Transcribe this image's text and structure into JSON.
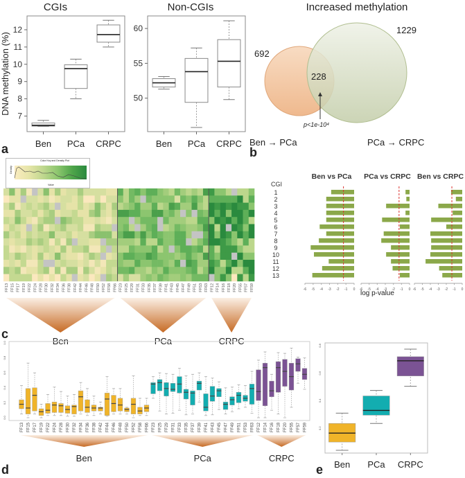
{
  "panel_labels": {
    "a": "a",
    "b": "b",
    "c": "c",
    "d": "d",
    "e": "e"
  },
  "colors": {
    "ben": "#F0B429",
    "pca": "#13ADB0",
    "crpc": "#7B5394",
    "bar_green": "#8BA84A",
    "sig_line": "#D9302C",
    "venn_left": "#F5CFAE",
    "venn_right": "#D6DDC4"
  },
  "chart_data": [
    {
      "id": "a-cgi",
      "type": "box",
      "title": "CGIs",
      "ylabel": "DNA methylation (%)",
      "xlabel": "",
      "categories": [
        "Ben",
        "PCa",
        "CRPC"
      ],
      "ylim": [
        6.1,
        12.8
      ],
      "yticks": [
        7,
        8,
        9,
        10,
        11,
        12
      ],
      "boxes": [
        {
          "min": 6.4,
          "q1": 6.42,
          "median": 6.47,
          "q3": 6.6,
          "max": 6.75
        },
        {
          "min": 8.0,
          "q1": 8.6,
          "median": 9.75,
          "q3": 9.97,
          "max": 10.3
        },
        {
          "min": 11.0,
          "q1": 11.28,
          "median": 11.72,
          "q3": 12.28,
          "max": 12.55
        }
      ]
    },
    {
      "id": "a-noncgi",
      "type": "box",
      "title": "Non-CGIs",
      "ylabel": "",
      "xlabel": "",
      "categories": [
        "Ben",
        "PCa",
        "CRPC"
      ],
      "ylim": [
        45.2,
        61.8
      ],
      "yticks": [
        50,
        55,
        60
      ],
      "boxes": [
        {
          "min": 51.3,
          "q1": 51.6,
          "median": 52.2,
          "q3": 52.8,
          "max": 53.1
        },
        {
          "min": 45.8,
          "q1": 49.4,
          "median": 53.8,
          "q3": 55.7,
          "max": 57.2
        },
        {
          "min": 49.8,
          "q1": 51.6,
          "median": 55.3,
          "q3": 58.4,
          "max": 61.1
        }
      ]
    },
    {
      "id": "b-venn",
      "type": "venn",
      "title": "Increased methylation",
      "sets": [
        {
          "label": "Ben → PCa",
          "size": 692
        },
        {
          "label": "PCa → CRPC",
          "size": 1229
        }
      ],
      "intersection": 228,
      "annotation": "p<1e-10⁴"
    },
    {
      "id": "c-heatmap",
      "type": "heatmap",
      "color_key_title": "Color Key and Density Plot",
      "color_key_xlabel": "Value",
      "color_key_ylabel": "Density",
      "rows": 13,
      "groups": [
        {
          "label": "Ben",
          "samples": [
            "FF13",
            "FF15",
            "FF17",
            "FF19",
            "FF22",
            "FF24",
            "FF28",
            "FF30",
            "FF32",
            "FF34",
            "FF36",
            "FF38",
            "FF42",
            "FF44",
            "FF46",
            "FF48",
            "FF50",
            "FF52",
            "FF58",
            "FF66"
          ]
        },
        {
          "label": "PCa",
          "samples": [
            "FF23",
            "FF25",
            "FF29",
            "FF31",
            "FF33",
            "FF35",
            "FF37",
            "FF39",
            "FF41",
            "FF43",
            "FF45",
            "FF47",
            "FF49",
            "FF51",
            "FF53",
            "FF63"
          ]
        },
        {
          "label": "CRPC",
          "samples": [
            "FF12",
            "FF14",
            "FF16",
            "FF18",
            "FF20",
            "FF55",
            "FF57",
            "FF59"
          ]
        }
      ]
    },
    {
      "id": "c-bars",
      "type": "bar",
      "orientation": "horizontal",
      "row_header": "CGI",
      "categories": [
        "1",
        "2",
        "3",
        "4",
        "5",
        "6",
        "7",
        "8",
        "9",
        "10",
        "11",
        "12",
        "13"
      ],
      "xlabel": "log p-value",
      "xlim": [
        -6,
        0
      ],
      "xticks": [
        -6,
        -5,
        -4,
        -3,
        -2,
        -1,
        0
      ],
      "threshold": -1.3,
      "series": [
        {
          "name": "Ben vs PCa",
          "values": [
            -2.8,
            -3.4,
            -3.4,
            -3.4,
            -3.4,
            -4.2,
            -3.4,
            -4.3,
            -5.3,
            -4.9,
            -3.1,
            -3.9,
            -5.1
          ]
        },
        {
          "name": "PCa vs CRPC",
          "values": [
            -0.5,
            -0.4,
            -2.9,
            -0.5,
            -3.4,
            -1.2,
            -3.2,
            -3.5,
            -2.3,
            -2.9,
            -2.3,
            -2.1,
            -1.2
          ]
        },
        {
          "name": "Ben vs CRPC",
          "values": [
            -1.4,
            -0.8,
            -3.0,
            -1.2,
            -3.9,
            -2.0,
            -4.0,
            -3.9,
            -3.9,
            -4.0,
            -4.6,
            -2.9,
            -2.5
          ]
        }
      ]
    },
    {
      "id": "d-samples",
      "type": "box",
      "ylim": [
        0,
        1
      ],
      "yticks": [
        0.0,
        0.2,
        0.4,
        0.6,
        0.8,
        1.0
      ],
      "ytick_labels": [
        "0.0",
        "0.2",
        "0.4",
        "0.6",
        "0.8",
        "1.0"
      ],
      "group_labels": [
        "Ben",
        "PCa",
        "CRPC"
      ],
      "samples": [
        {
          "name": "FF13",
          "group": "Ben",
          "min": 0.05,
          "q1": 0.12,
          "median": 0.18,
          "q3": 0.24,
          "max": 0.43
        },
        {
          "name": "FF15",
          "group": "Ben",
          "min": 0.0,
          "q1": 0.05,
          "median": 0.13,
          "q3": 0.39,
          "max": 0.73
        },
        {
          "name": "FF17",
          "group": "Ben",
          "min": 0.05,
          "q1": 0.09,
          "median": 0.3,
          "q3": 0.4,
          "max": 0.6
        },
        {
          "name": "FF19",
          "group": "Ben",
          "min": 0.0,
          "q1": 0.03,
          "median": 0.08,
          "q3": 0.12,
          "max": 0.18
        },
        {
          "name": "FF22",
          "group": "Ben",
          "min": 0.03,
          "q1": 0.06,
          "median": 0.1,
          "q3": 0.19,
          "max": 0.31
        },
        {
          "name": "FF24",
          "group": "Ben",
          "min": 0.03,
          "q1": 0.07,
          "median": 0.17,
          "q3": 0.21,
          "max": 0.41
        },
        {
          "name": "FF28",
          "group": "Ben",
          "min": 0.03,
          "q1": 0.07,
          "median": 0.16,
          "q3": 0.19,
          "max": 0.35
        },
        {
          "name": "FF30",
          "group": "Ben",
          "min": 0.02,
          "q1": 0.06,
          "median": 0.11,
          "q3": 0.16,
          "max": 0.29
        },
        {
          "name": "FF32",
          "group": "Ben",
          "min": 0.02,
          "q1": 0.05,
          "median": 0.15,
          "q3": 0.17,
          "max": 0.31
        },
        {
          "name": "FF34",
          "group": "Ben",
          "min": 0.05,
          "q1": 0.09,
          "median": 0.28,
          "q3": 0.36,
          "max": 0.47
        },
        {
          "name": "FF36",
          "group": "Ben",
          "min": 0.03,
          "q1": 0.07,
          "median": 0.14,
          "q3": 0.24,
          "max": 0.39
        },
        {
          "name": "FF38",
          "group": "Ben",
          "min": 0.03,
          "q1": 0.09,
          "median": 0.13,
          "q3": 0.17,
          "max": 0.29
        },
        {
          "name": "FF42",
          "group": "Ben",
          "min": 0.05,
          "q1": 0.09,
          "median": 0.13,
          "q3": 0.14,
          "max": 0.21
        },
        {
          "name": "FF44",
          "group": "Ben",
          "min": 0.02,
          "q1": 0.03,
          "median": 0.25,
          "q3": 0.33,
          "max": 0.55
        },
        {
          "name": "FF46",
          "group": "Ben",
          "min": 0.05,
          "q1": 0.08,
          "median": 0.19,
          "q3": 0.3,
          "max": 0.39
        },
        {
          "name": "FF48",
          "group": "Ben",
          "min": 0.05,
          "q1": 0.09,
          "median": 0.17,
          "q3": 0.26,
          "max": 0.39
        },
        {
          "name": "FF50",
          "group": "Ben",
          "min": 0.05,
          "q1": 0.08,
          "median": 0.11,
          "q3": 0.13,
          "max": 0.14
        },
        {
          "name": "FF52",
          "group": "Ben",
          "min": 0.0,
          "q1": 0.05,
          "median": 0.18,
          "q3": 0.26,
          "max": 0.56
        },
        {
          "name": "FF58",
          "group": "Ben",
          "min": 0.03,
          "q1": 0.05,
          "median": 0.09,
          "q3": 0.14,
          "max": 0.26
        },
        {
          "name": "FF66",
          "group": "Ben",
          "min": 0.03,
          "q1": 0.08,
          "median": 0.13,
          "q3": 0.17,
          "max": 0.26
        },
        {
          "name": "FF23",
          "group": "PCa",
          "min": 0.26,
          "q1": 0.32,
          "median": 0.45,
          "q3": 0.47,
          "max": 0.55
        },
        {
          "name": "FF25",
          "group": "PCa",
          "min": 0.09,
          "q1": 0.36,
          "median": 0.47,
          "q3": 0.51,
          "max": 0.6
        },
        {
          "name": "FF29",
          "group": "PCa",
          "min": 0.05,
          "q1": 0.29,
          "median": 0.39,
          "q3": 0.47,
          "max": 0.59
        },
        {
          "name": "FF31",
          "group": "PCa",
          "min": 0.06,
          "q1": 0.35,
          "median": 0.38,
          "q3": 0.46,
          "max": 0.58
        },
        {
          "name": "FF33",
          "group": "PCa",
          "min": 0.1,
          "q1": 0.33,
          "median": 0.45,
          "q3": 0.55,
          "max": 0.66
        },
        {
          "name": "FF35",
          "group": "PCa",
          "min": 0.04,
          "q1": 0.25,
          "median": 0.34,
          "q3": 0.38,
          "max": 0.56
        },
        {
          "name": "FF37",
          "group": "PCa",
          "min": 0.05,
          "q1": 0.17,
          "median": 0.33,
          "q3": 0.36,
          "max": 0.58
        },
        {
          "name": "FF39",
          "group": "PCa",
          "min": 0.21,
          "q1": 0.37,
          "median": 0.46,
          "q3": 0.49,
          "max": 0.6
        },
        {
          "name": "FF41",
          "group": "PCa",
          "min": 0.03,
          "q1": 0.09,
          "median": 0.14,
          "q3": 0.32,
          "max": 0.55
        },
        {
          "name": "FF43",
          "group": "PCa",
          "min": 0.04,
          "q1": 0.22,
          "median": 0.29,
          "q3": 0.42,
          "max": 0.53
        },
        {
          "name": "FF45",
          "group": "PCa",
          "min": 0.11,
          "q1": 0.28,
          "median": 0.36,
          "q3": 0.39,
          "max": 0.48
        },
        {
          "name": "FF47",
          "group": "PCa",
          "min": 0.05,
          "q1": 0.11,
          "median": 0.18,
          "q3": 0.21,
          "max": 0.4
        },
        {
          "name": "FF49",
          "group": "PCa",
          "min": 0.08,
          "q1": 0.17,
          "median": 0.24,
          "q3": 0.28,
          "max": 0.41
        },
        {
          "name": "FF51",
          "group": "PCa",
          "min": 0.12,
          "q1": 0.2,
          "median": 0.3,
          "q3": 0.34,
          "max": 0.44
        },
        {
          "name": "FF53",
          "group": "PCa",
          "min": 0.14,
          "q1": 0.22,
          "median": 0.26,
          "q3": 0.3,
          "max": 0.43
        },
        {
          "name": "FF63",
          "group": "PCa",
          "min": 0.06,
          "q1": 0.18,
          "median": 0.39,
          "q3": 0.45,
          "max": 0.62
        },
        {
          "name": "FF12",
          "group": "CRPC",
          "min": 0.0,
          "q1": 0.23,
          "median": 0.35,
          "q3": 0.64,
          "max": 0.77
        },
        {
          "name": "FF14",
          "group": "CRPC",
          "min": 0.0,
          "q1": 0.16,
          "median": 0.67,
          "q3": 0.73,
          "max": 0.88
        },
        {
          "name": "FF16",
          "group": "CRPC",
          "min": 0.1,
          "q1": 0.28,
          "median": 0.36,
          "q3": 0.49,
          "max": 0.58
        },
        {
          "name": "FF18",
          "group": "CRPC",
          "min": 0.05,
          "q1": 0.34,
          "median": 0.67,
          "q3": 0.75,
          "max": 0.87
        },
        {
          "name": "FF20",
          "group": "CRPC",
          "min": 0.0,
          "q1": 0.42,
          "median": 0.62,
          "q3": 0.78,
          "max": 0.86
        },
        {
          "name": "FF55",
          "group": "CRPC",
          "min": 0.14,
          "q1": 0.37,
          "median": 0.55,
          "q3": 0.73,
          "max": 0.93
        },
        {
          "name": "FF57",
          "group": "CRPC",
          "min": 0.46,
          "q1": 0.62,
          "median": 0.72,
          "q3": 0.79,
          "max": 0.81
        },
        {
          "name": "FF59",
          "group": "CRPC",
          "min": 0.38,
          "q1": 0.51,
          "median": 0.58,
          "q3": 0.66,
          "max": 0.8
        }
      ]
    },
    {
      "id": "e-groups",
      "type": "box",
      "categories": [
        "Ben",
        "PCa",
        "CRPC"
      ],
      "ylim": [
        0.02,
        0.82
      ],
      "yticks": [
        0.2,
        0.4,
        0.6,
        0.8
      ],
      "ytick_labels": [
        "0.2",
        "0.4",
        "0.6",
        "0.8"
      ],
      "boxes": [
        {
          "min": 0.04,
          "q1": 0.1,
          "median": 0.165,
          "q3": 0.235,
          "max": 0.31
        },
        {
          "min": 0.235,
          "q1": 0.295,
          "median": 0.33,
          "q3": 0.435,
          "max": 0.475
        },
        {
          "min": 0.505,
          "q1": 0.58,
          "median": 0.69,
          "q3": 0.72,
          "max": 0.775
        }
      ]
    }
  ]
}
